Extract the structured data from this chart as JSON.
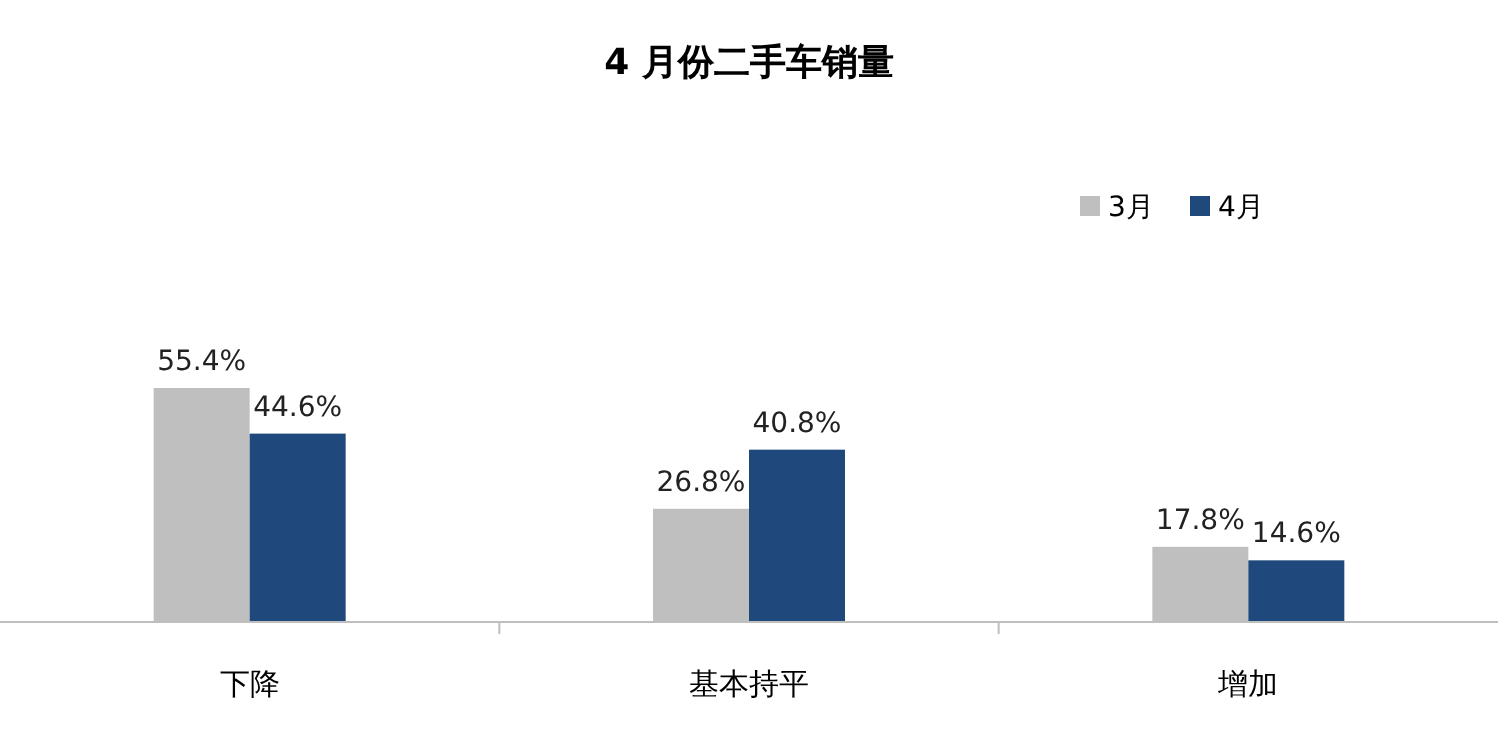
{
  "chart_data": {
    "type": "bar",
    "title": "4 月份二手车销量",
    "categories": [
      "下降",
      "基本持平",
      "增加"
    ],
    "series": [
      {
        "name": "3月",
        "color": "#bfbfbf",
        "values": [
          55.4,
          26.8,
          17.8
        ],
        "value_labels": [
          "55.4%",
          "26.8%",
          "17.8%"
        ]
      },
      {
        "name": "4月",
        "color": "#1f497d",
        "values": [
          44.6,
          40.8,
          14.6
        ],
        "value_labels": [
          "44.6%",
          "40.8%",
          "14.6%"
        ]
      }
    ],
    "tick_labels": "x",
    "legend": "top right"
  }
}
